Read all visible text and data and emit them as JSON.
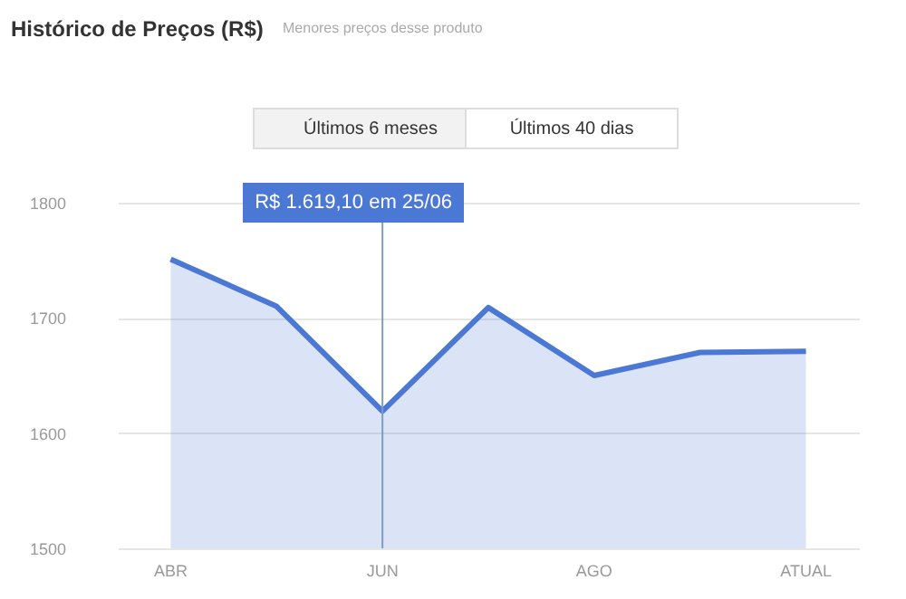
{
  "chart_data": {
    "type": "area",
    "title": "Histórico de Preços (R$)",
    "subtitle": "Menores preços desse produto",
    "categories": [
      "ABR",
      null,
      "JUN",
      null,
      "AGO",
      null,
      "ATUAL"
    ],
    "series": [
      {
        "color": "#4a78d4",
        "values": [
          1751,
          1710,
          1619,
          1709,
          1650,
          1670,
          1671
        ]
      }
    ],
    "ylim": [
      1500,
      1800
    ],
    "yticks": [
      1500,
      1600,
      1700,
      1800
    ],
    "grid": "y",
    "ref_lines": [
      {
        "axis": "x",
        "value": "JUN",
        "color": "#7f9cc4"
      }
    ],
    "annotations": [
      "R$ 1.619,10 em 25/06",
      "Últimos 6 meses",
      "Últimos 40 dias"
    ]
  }
}
